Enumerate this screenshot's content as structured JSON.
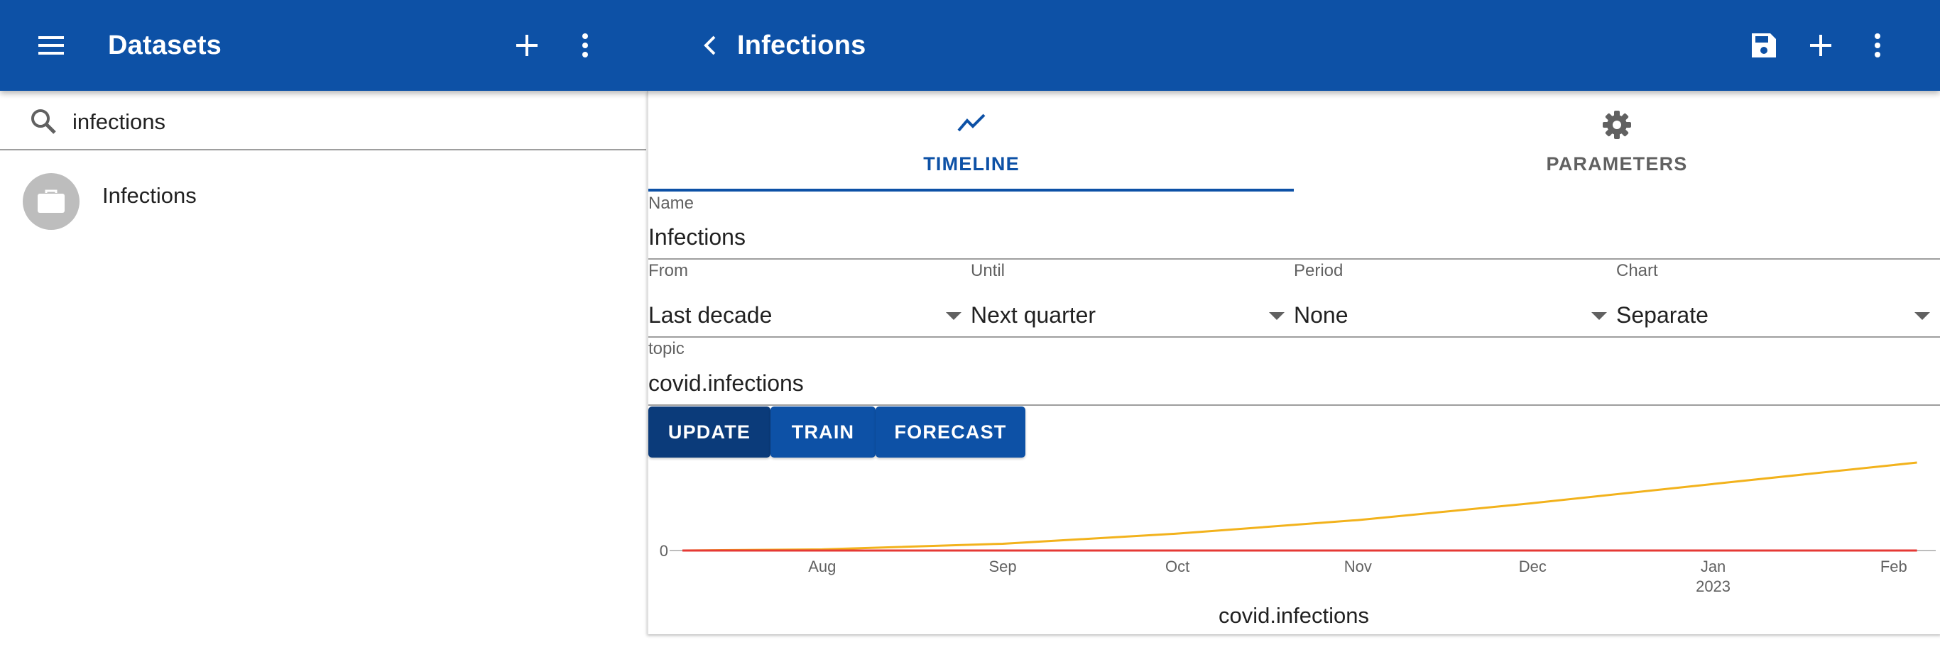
{
  "left_bar": {
    "title": "Datasets",
    "icons": [
      "menu-icon",
      "plus-icon",
      "more-vert-icon"
    ]
  },
  "right_bar": {
    "title": "Infections",
    "icons": [
      "chevron-left-icon",
      "save-icon",
      "plus-icon",
      "more-vert-icon"
    ]
  },
  "search": {
    "value": "infections",
    "icon": "search-icon"
  },
  "datasets": [
    {
      "label": "Infections",
      "icon": "briefcase-icon"
    }
  ],
  "tabs": [
    {
      "label": "TIMELINE",
      "icon": "show-chart-icon",
      "selected": true
    },
    {
      "label": "PARAMETERS",
      "icon": "gear-icon",
      "selected": false
    }
  ],
  "form": {
    "name": {
      "label": "Name",
      "value": "Infections"
    },
    "from": {
      "label": "From",
      "value": "Last decade"
    },
    "until": {
      "label": "Until",
      "value": "Next quarter"
    },
    "period": {
      "label": "Period",
      "value": "None"
    },
    "chart": {
      "label": "Chart",
      "value": "Separate"
    },
    "topic": {
      "label": "topic",
      "value": "covid.infections"
    }
  },
  "buttons": {
    "update": "UPDATE",
    "train": "TRAIN",
    "forecast": "FORECAST"
  },
  "colors": {
    "primary": "#0d51a6",
    "primary_dark": "#0b3b7a",
    "series_main": "#f2b21c",
    "series_baseline": "#e53935"
  },
  "chart_data": {
    "type": "line",
    "title": "covid.infections",
    "x_ticks": [
      {
        "label": "Aug",
        "sub": ""
      },
      {
        "label": "Sep",
        "sub": ""
      },
      {
        "label": "Oct",
        "sub": ""
      },
      {
        "label": "Nov",
        "sub": ""
      },
      {
        "label": "Dec",
        "sub": ""
      },
      {
        "label": "Jan",
        "sub": "2023"
      },
      {
        "label": "Feb",
        "sub": ""
      }
    ],
    "y_ticks": [
      "0"
    ],
    "xlim": [
      "2022-07-08",
      "2023-02-07"
    ],
    "grid": false,
    "legend": "none",
    "series": [
      {
        "color": "#f2b21c",
        "x": [
          "2022-07-08",
          "2022-08-01",
          "2022-09-01",
          "2022-10-01",
          "2022-11-01",
          "2022-12-01",
          "2023-01-01",
          "2023-02-05"
        ],
        "values": [
          0,
          0.5,
          3,
          7.5,
          13.5,
          21,
          29.5,
          39
        ]
      },
      {
        "color": "#e53935",
        "x": [
          "2022-07-08",
          "2023-02-05"
        ],
        "values": [
          0,
          0
        ]
      }
    ]
  }
}
